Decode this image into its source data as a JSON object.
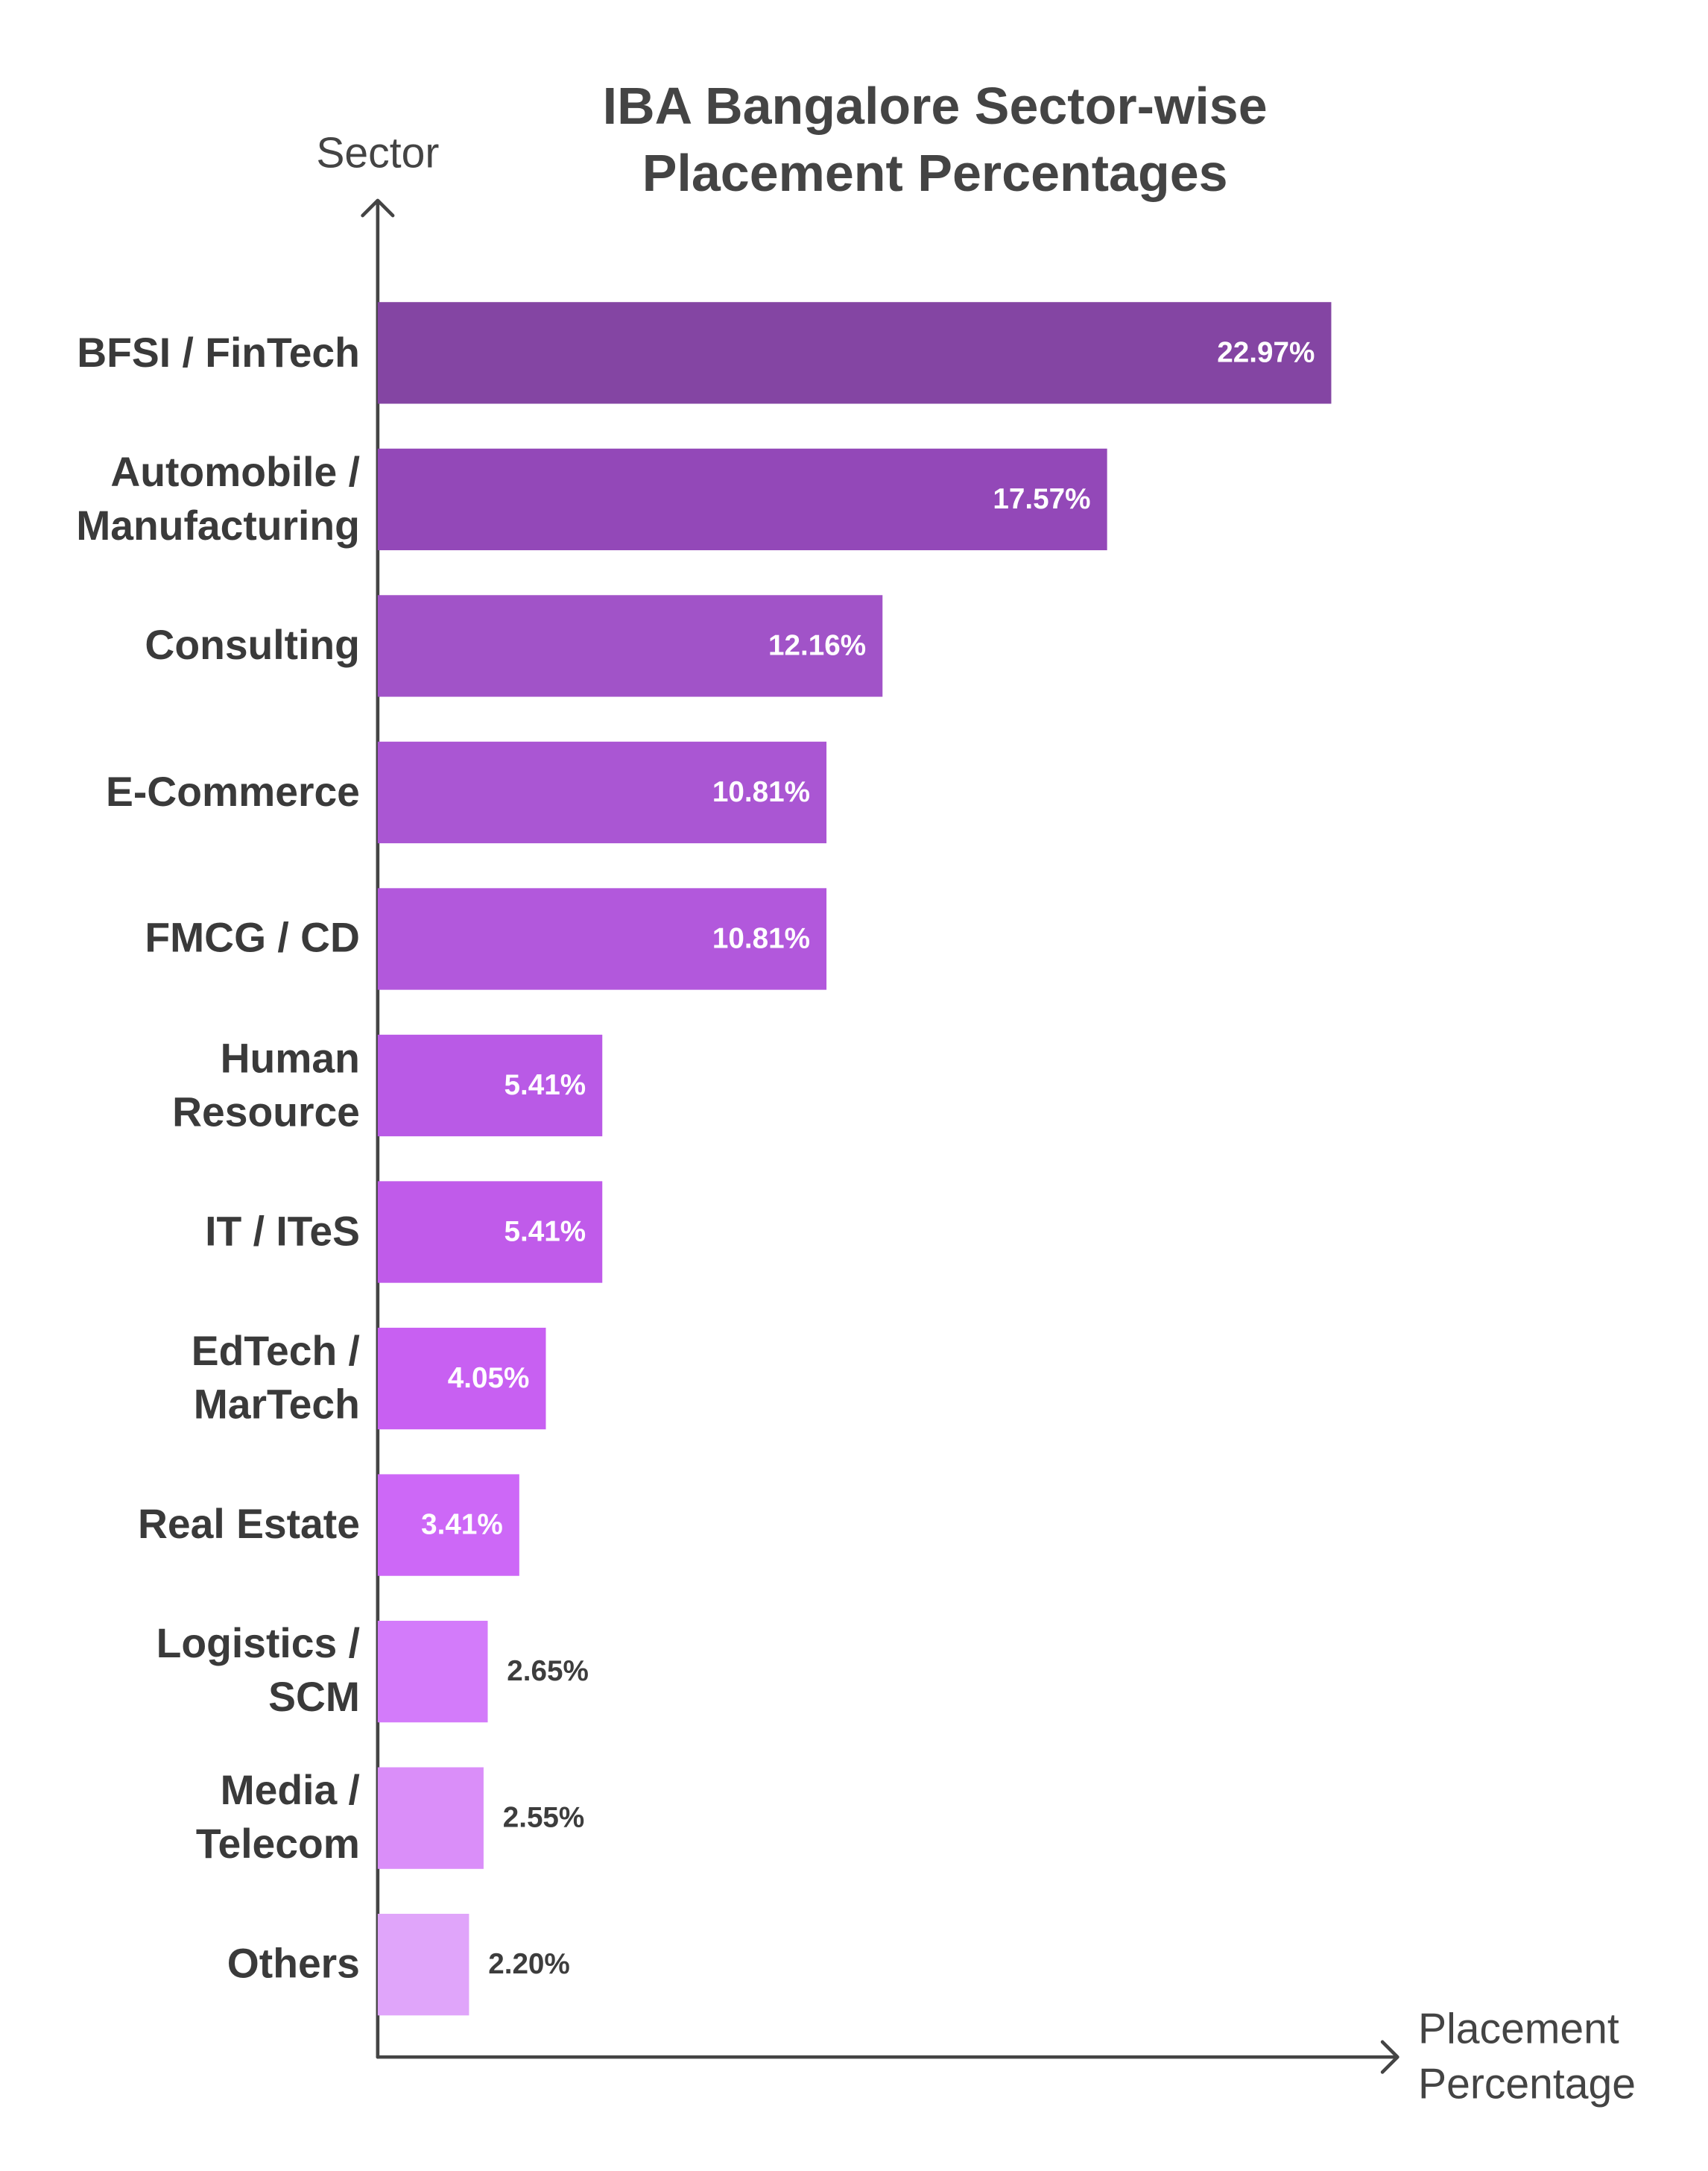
{
  "chart_data": {
    "type": "bar",
    "orientation": "horizontal",
    "title": "IBA Bangalore Sector-wise Placement Percentages",
    "y_label": "Sector",
    "x_label": "Placement Percentage",
    "categories": [
      "BFSI / FinTech",
      "Automobile / Manufacturing",
      "Consulting",
      "E-Commerce",
      "FMCG / CD",
      "Human Resource",
      "IT / ITeS",
      "EdTech / MarTech",
      "Real Estate",
      "Logistics / SCM",
      "Media / Telecom",
      "Others"
    ],
    "values": [
      22.97,
      17.57,
      12.16,
      10.81,
      10.81,
      5.41,
      5.41,
      4.05,
      3.41,
      2.65,
      2.55,
      2.2
    ],
    "value_labels": [
      "22.97%",
      "17.57%",
      "12.16%",
      "10.81%",
      "10.81%",
      "5.41%",
      "5.41%",
      "4.05%",
      "3.41%",
      "2.65%",
      "2.55%",
      "2.20%"
    ],
    "colors": [
      "#8445a3",
      "#9348b8",
      "#a153c8",
      "#aa56d3",
      "#b258dc",
      "#b95ae6",
      "#c05bea",
      "#c860f2",
      "#cd68f7",
      "#d37bfa",
      "#da8ef9",
      "#e0a5fa"
    ],
    "xlim": [
      0,
      24.5
    ]
  }
}
